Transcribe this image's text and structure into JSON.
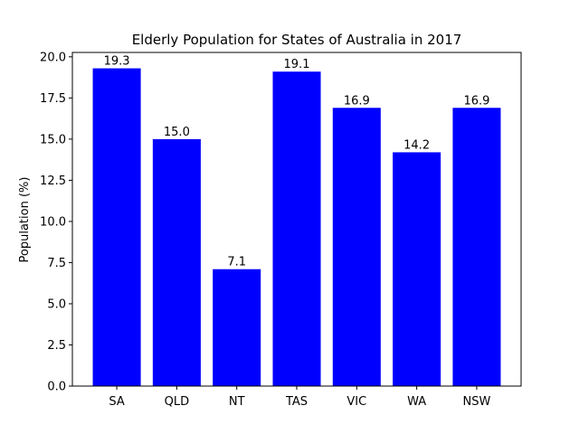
{
  "chart_data": {
    "type": "bar",
    "title": "Elderly Population for States of Australia in 2017",
    "xlabel": "",
    "ylabel": "Population (%)",
    "categories": [
      "SA",
      "QLD",
      "NT",
      "TAS",
      "VIC",
      "WA",
      "NSW"
    ],
    "values": [
      19.3,
      15.0,
      7.1,
      19.1,
      16.9,
      14.2,
      16.9
    ],
    "data_labels": [
      "19.3",
      "15.0",
      "7.1",
      "19.1",
      "16.9",
      "14.2",
      "16.9"
    ],
    "ylim": [
      0,
      20.265
    ],
    "yticks": [
      0.0,
      2.5,
      5.0,
      7.5,
      10.0,
      12.5,
      15.0,
      17.5,
      20.0
    ],
    "ytick_labels": [
      "0.0",
      "2.5",
      "5.0",
      "7.5",
      "10.0",
      "12.5",
      "15.0",
      "17.5",
      "20.0"
    ],
    "bar_color": "#0000ff",
    "grid": false,
    "legend": "none"
  }
}
